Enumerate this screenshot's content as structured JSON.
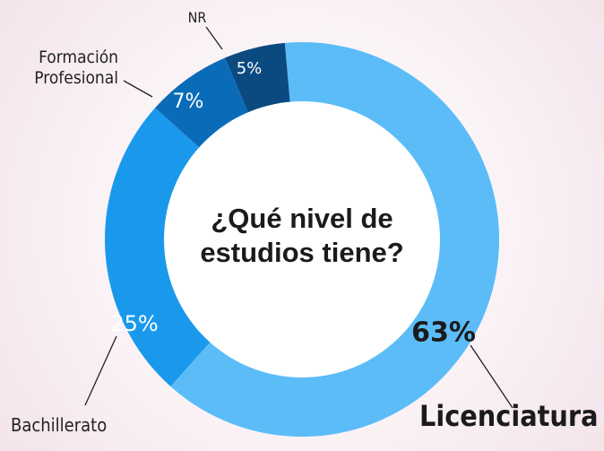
{
  "chart_data": {
    "type": "pie",
    "title": "¿Qué nivel de estudios tiene?",
    "categories": [
      "Licenciatura",
      "Bachillerato",
      "Formación Profesional",
      "NR"
    ],
    "values": [
      63,
      25,
      7,
      5
    ],
    "value_labels": [
      "63%",
      "25%",
      "7%",
      "5%"
    ],
    "colors": [
      "#5bbcf8",
      "#1a99ec",
      "#0a6cb8",
      "#0b4a80"
    ]
  }
}
